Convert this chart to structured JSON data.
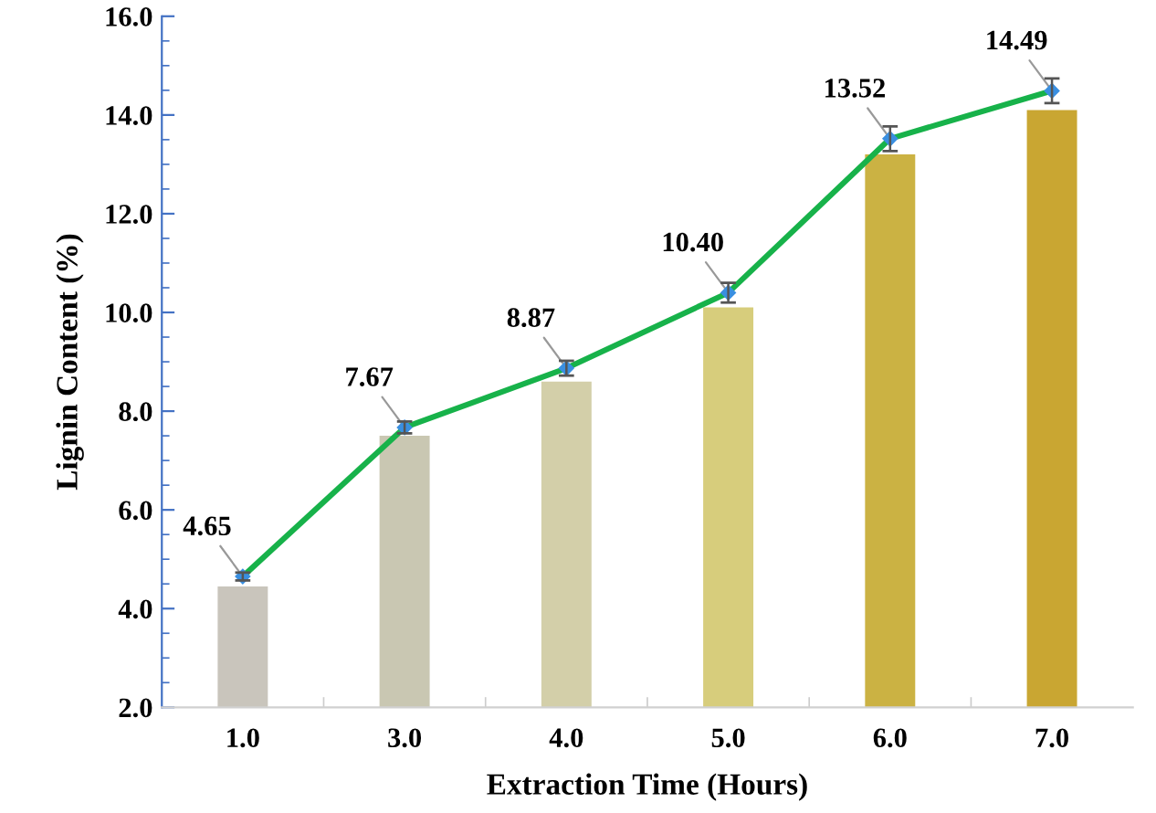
{
  "chart_data": {
    "type": "bar",
    "xlabel": "Extraction Time (Hours)",
    "ylabel": "Lignin Content (%)",
    "categories": [
      "1.0",
      "3.0",
      "4.0",
      "5.0",
      "6.0",
      "7.0"
    ],
    "ylim": [
      2.0,
      16.0
    ],
    "yticks": [
      {
        "value": 2,
        "label": "2.0"
      },
      {
        "value": 4,
        "label": "4.0"
      },
      {
        "value": 6,
        "label": "6.0"
      },
      {
        "value": 8,
        "label": "8.0"
      },
      {
        "value": 10,
        "label": "10.0"
      },
      {
        "value": 12,
        "label": "12.0"
      },
      {
        "value": 14,
        "label": "14.0"
      },
      {
        "value": 16,
        "label": "16.0"
      }
    ],
    "grid": false,
    "series": [
      {
        "colors": [
          "#c9c5bc",
          "#c9c7b2",
          "#d3cfa9",
          "#d7cd7c",
          "#cbb243",
          "#c9a632"
        ],
        "values": [
          4.45,
          7.5,
          8.6,
          10.1,
          13.2,
          14.1
        ]
      },
      {
        "type": "line",
        "color": "#17b24a",
        "marker": "diamond",
        "line_style": "solid",
        "value_labels": [
          "4.65",
          "7.67",
          "8.87",
          "10.40",
          "13.52",
          "14.49"
        ],
        "values": [
          4.65,
          7.67,
          8.87,
          10.4,
          13.52,
          14.49
        ],
        "errors": [
          0.08,
          0.12,
          0.15,
          0.2,
          0.25,
          0.25
        ]
      }
    ]
  }
}
